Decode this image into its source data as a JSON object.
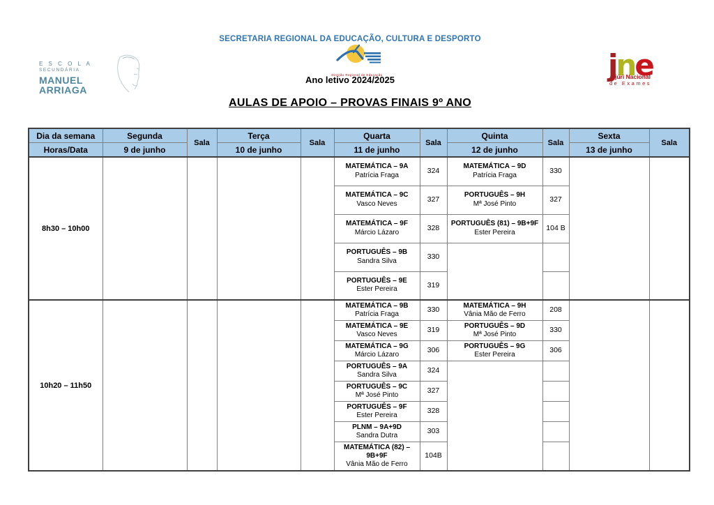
{
  "page": {
    "org_line": "SECRETARIA REGIONAL DA EDUCAÇÃO, CULTURA E DESPORTO",
    "year_line": "Ano letivo 2024/2025",
    "title": "AULAS DE APOIO – PROVAS FINAIS 9º ANO",
    "school_logo": {
      "line1": "E S C O L A",
      "line2": "SECUNDÁRIA",
      "line3": "MANUEL",
      "line4": "ARRIAGA"
    },
    "dre_logo": {
      "caption": "Direção Regional de Educação"
    },
    "jne_logo": {
      "j": "j",
      "n": "n",
      "e": "e",
      "caption1": "júri Nacional",
      "caption2": "de Exames"
    }
  },
  "colors": {
    "header_blue": "#A9CCE9",
    "org_blue": "#2E74B5",
    "grid_gray": "#7f7f7f",
    "frame_gray": "#3f3f3f",
    "jne_red": "#C8161C",
    "jne_dark_red": "#A41E22",
    "jne_green": "#AFB51D",
    "school_teal": "#4f87a3",
    "logo_yellow": "#F5C63C",
    "logo_blue": "#2C6FAE"
  },
  "table": {
    "header": {
      "col0": {
        "row1": "Dia da semana",
        "row2": "Horas/Data"
      },
      "sala_label": "Sala",
      "days": [
        {
          "name": "Segunda",
          "date": "9 de junho"
        },
        {
          "name": "Terça",
          "date": "10 de junho"
        },
        {
          "name": "Quarta",
          "date": "11 de junho"
        },
        {
          "name": "Quinta",
          "date": "12 de junho"
        },
        {
          "name": "Sexta",
          "date": "13 de junho"
        }
      ]
    },
    "blocks": [
      {
        "time": "8h30 – 10h00",
        "rows": 5,
        "quarta": [
          {
            "subject": "MATEMÁTICA – 9A",
            "teacher": "Patrícia Fraga",
            "sala": "324"
          },
          {
            "subject": "MATEMÁTICA – 9C",
            "teacher": "Vasco Neves",
            "sala": "327"
          },
          {
            "subject": "MATEMÁTICA – 9F",
            "teacher": "Márcio Lázaro",
            "sala": "328"
          },
          {
            "subject": "PORTUGUÊS – 9B",
            "teacher": "Sandra Silva",
            "sala": "330"
          },
          {
            "subject": "PORTUGUÊS – 9E",
            "teacher": "Ester Pereira",
            "sala": "319"
          }
        ],
        "quinta": [
          {
            "subject": "MATEMÁTICA – 9D",
            "teacher": "Patrícia Fraga",
            "sala": "330"
          },
          {
            "subject": "PORTUGUÊS – 9H",
            "teacher": "Mª José Pinto",
            "sala": "327"
          },
          {
            "subject": "PORTUGUÊS (81) – 9B+9F",
            "teacher": "Ester Pereira",
            "sala": "104 B"
          }
        ]
      },
      {
        "time": "10h20 – 11h50",
        "rows": 8,
        "quarta": [
          {
            "subject": "MATEMÁTICA – 9B",
            "teacher": "Patrícia Fraga",
            "sala": "330"
          },
          {
            "subject": "MATEMÁTICA – 9E",
            "teacher": "Vasco Neves",
            "sala": "319"
          },
          {
            "subject": "MATEMÁTICA – 9G",
            "teacher": "Márcio Lázaro",
            "sala": "306"
          },
          {
            "subject": "PORTUGUÊS – 9A",
            "teacher": "Sandra Silva",
            "sala": "324"
          },
          {
            "subject": "PORTUGUÊS – 9C",
            "teacher": "Mª José Pinto",
            "sala": "327"
          },
          {
            "subject": "PORTUGUÊS – 9F",
            "teacher": "Ester Pereira",
            "sala": "328"
          },
          {
            "subject": "PLNM – 9A+9D",
            "teacher": "Sandra Dutra",
            "sala": "303"
          },
          {
            "subject": "MATEMÁTICA (82) – 9B+9F",
            "teacher": "Vânia Mão de Ferro",
            "sala": "104B"
          }
        ],
        "quinta": [
          {
            "subject": "MATEMÁTICA – 9H",
            "teacher": "Vânia Mão de Ferro",
            "sala": "208"
          },
          {
            "subject": "PORTUGUÊS – 9D",
            "teacher": "Mª José Pinto",
            "sala": "330"
          },
          {
            "subject": "PORTUGUÊS – 9G",
            "teacher": "Ester Pereira",
            "sala": "306"
          }
        ]
      }
    ]
  }
}
